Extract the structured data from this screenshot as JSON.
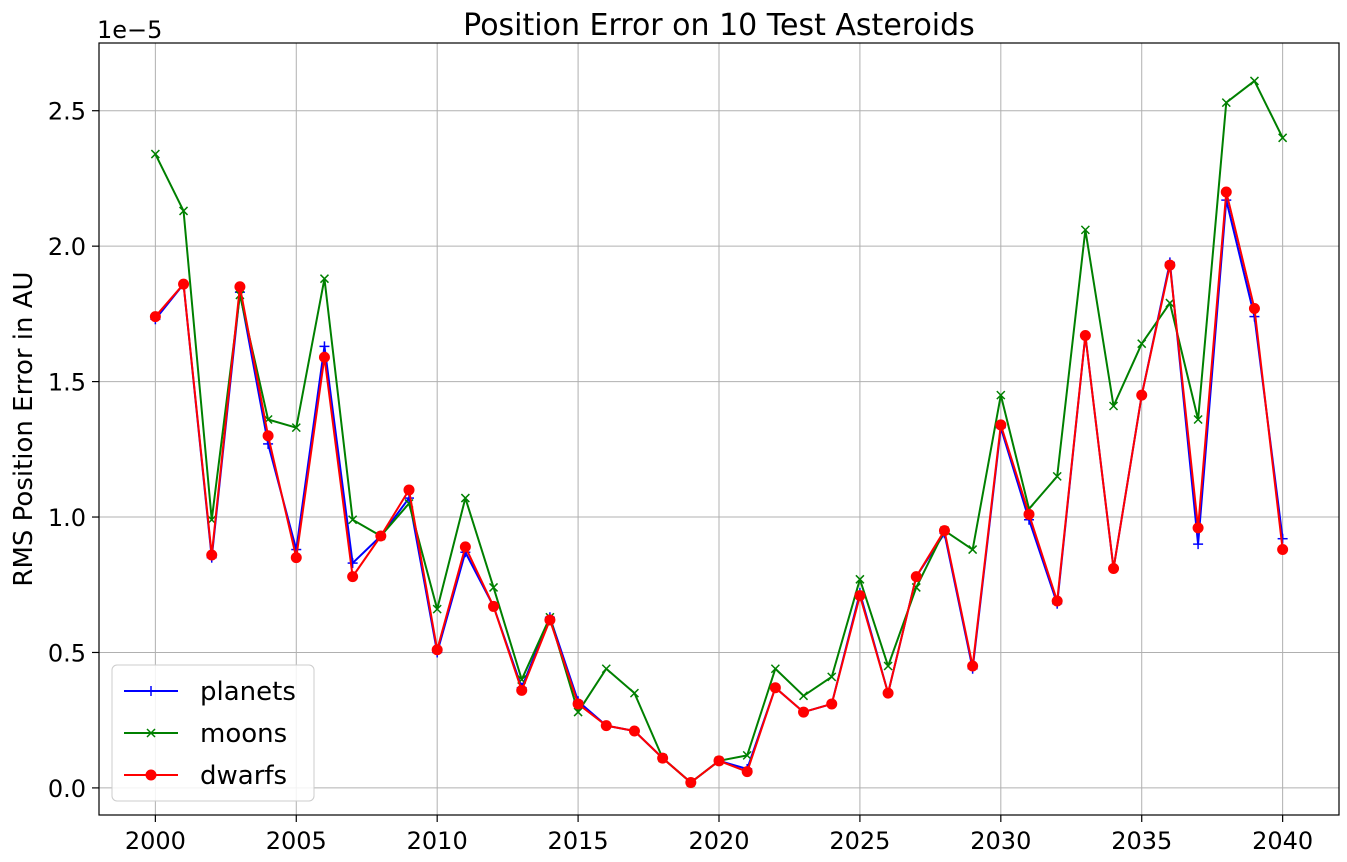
{
  "chart_data": {
    "type": "line",
    "title": "Position Error on 10 Test Asteroids",
    "ylabel": "RMS Position Error in AU",
    "xlabel": "",
    "y_multiplier": "1e−5",
    "x": [
      2000,
      2001,
      2002,
      2003,
      2004,
      2005,
      2006,
      2007,
      2008,
      2009,
      2010,
      2011,
      2012,
      2013,
      2014,
      2015,
      2016,
      2017,
      2018,
      2019,
      2020,
      2021,
      2022,
      2023,
      2024,
      2025,
      2026,
      2027,
      2028,
      2029,
      2030,
      2031,
      2032,
      2033,
      2034,
      2035,
      2036,
      2037,
      2038,
      2039,
      2040
    ],
    "xlim": [
      1998,
      2042
    ],
    "ylim": [
      -0.1,
      2.75
    ],
    "x_ticks": [
      2000,
      2005,
      2010,
      2015,
      2020,
      2025,
      2030,
      2035,
      2040
    ],
    "y_ticks": [
      0.0,
      0.5,
      1.0,
      1.5,
      2.0,
      2.5
    ],
    "x_tick_labels": [
      "2000",
      "2005",
      "2010",
      "2015",
      "2020",
      "2025",
      "2030",
      "2035",
      "2040"
    ],
    "y_tick_labels": [
      "0.0",
      "0.5",
      "1.0",
      "1.5",
      "2.0",
      "2.5"
    ],
    "grid": true,
    "legend_position": "lower-left",
    "series": [
      {
        "name": "planets",
        "color": "#0000ff",
        "marker": "plus",
        "values": [
          1.73,
          1.86,
          0.85,
          1.83,
          1.27,
          0.88,
          1.63,
          0.83,
          0.93,
          1.07,
          0.5,
          0.87,
          0.67,
          0.37,
          0.63,
          0.32,
          0.23,
          0.21,
          0.11,
          0.02,
          0.1,
          0.07,
          0.37,
          0.28,
          0.31,
          0.72,
          0.35,
          0.78,
          0.94,
          0.44,
          1.33,
          0.99,
          0.68,
          1.67,
          0.81,
          1.45,
          1.94,
          0.9,
          2.17,
          1.74,
          0.92
        ]
      },
      {
        "name": "moons",
        "color": "#008000",
        "marker": "x",
        "values": [
          2.34,
          2.13,
          0.99,
          1.82,
          1.36,
          1.33,
          1.88,
          0.99,
          0.93,
          1.05,
          0.66,
          1.07,
          0.74,
          0.4,
          0.63,
          0.28,
          0.44,
          0.35,
          0.11,
          0.02,
          0.1,
          0.12,
          0.44,
          0.34,
          0.41,
          0.77,
          0.45,
          0.74,
          0.95,
          0.88,
          1.45,
          1.03,
          1.15,
          2.06,
          1.41,
          1.64,
          1.79,
          1.36,
          2.53,
          2.61,
          2.4
        ]
      },
      {
        "name": "dwarfs",
        "color": "#ff0000",
        "marker": "circle",
        "values": [
          1.74,
          1.86,
          0.86,
          1.85,
          1.3,
          0.85,
          1.59,
          0.78,
          0.93,
          1.1,
          0.51,
          0.89,
          0.67,
          0.36,
          0.62,
          0.31,
          0.23,
          0.21,
          0.11,
          0.02,
          0.1,
          0.06,
          0.37,
          0.28,
          0.31,
          0.71,
          0.35,
          0.78,
          0.95,
          0.45,
          1.34,
          1.01,
          0.69,
          1.67,
          0.81,
          1.45,
          1.93,
          0.96,
          2.2,
          1.77,
          0.88
        ]
      }
    ]
  }
}
